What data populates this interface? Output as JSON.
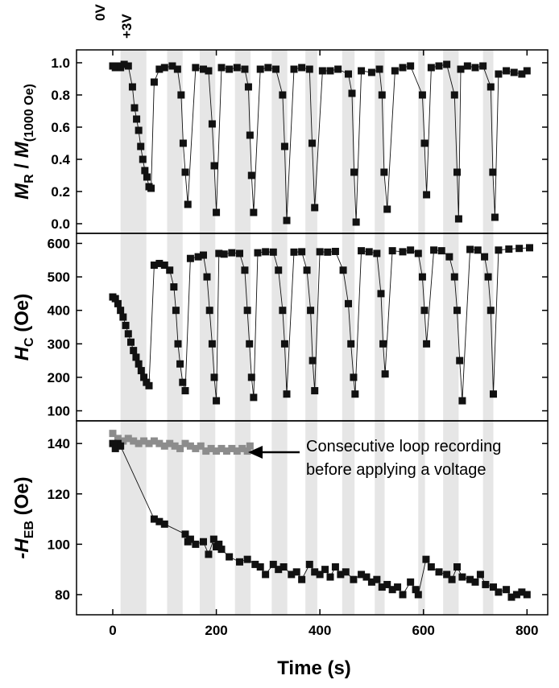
{
  "chart_data": {
    "type": "scatter",
    "title": "",
    "xlabel": "Time (s)",
    "x_ticks": [
      "0",
      "200",
      "400",
      "600",
      "800"
    ],
    "xlim": [
      -70,
      840
    ],
    "top_labels": [
      "0V",
      "+3V"
    ],
    "voltage_bands_s": [
      [
        15,
        65
      ],
      [
        105,
        135
      ],
      [
        168,
        198
      ],
      [
        236,
        266
      ],
      [
        307,
        337
      ],
      [
        372,
        395
      ],
      [
        443,
        467
      ],
      [
        506,
        525
      ],
      [
        590,
        603
      ],
      [
        638,
        668
      ],
      [
        715,
        735
      ]
    ],
    "panels": [
      {
        "ylabel": {
          "main": "M",
          "sub": "R",
          "mid": " / M",
          "sub2": "(1000 Oe)"
        },
        "ylim": [
          -0.06,
          1.08
        ],
        "ticks": [
          "0.0",
          "0.2",
          "0.4",
          "0.6",
          "0.8",
          "1.0"
        ],
        "series": [
          {
            "color": "#111111",
            "x": [
              0,
              5,
              10,
              15,
              22,
              30,
              38,
              42,
              46,
              50,
              54,
              58,
              62,
              66,
              70,
              74,
              80,
              90,
              100,
              115,
              125,
              132,
              136,
              140,
              145,
              160,
              175,
              185,
              192,
              196,
              200,
              210,
              225,
              240,
              255,
              262,
              265,
              268,
              272,
              285,
              300,
              315,
              328,
              332,
              336,
              350,
              365,
              380,
              385,
              390,
              405,
              420,
              435,
              455,
              462,
              466,
              470,
              480,
              500,
              515,
              520,
              524,
              530,
              545,
              560,
              575,
              598,
              602,
              606,
              615,
              630,
              645,
              660,
              665,
              668,
              672,
              685,
              700,
              715,
              730,
              734,
              738,
              745,
              760,
              775,
              790,
              800
            ],
            "y": [
              0.98,
              0.97,
              0.98,
              0.97,
              0.99,
              0.98,
              0.85,
              0.72,
              0.65,
              0.58,
              0.48,
              0.4,
              0.33,
              0.29,
              0.23,
              0.22,
              0.88,
              0.96,
              0.97,
              0.98,
              0.96,
              0.8,
              0.5,
              0.32,
              0.12,
              0.97,
              0.96,
              0.95,
              0.62,
              0.36,
              0.07,
              0.97,
              0.96,
              0.97,
              0.96,
              0.85,
              0.55,
              0.3,
              0.07,
              0.96,
              0.97,
              0.96,
              0.8,
              0.48,
              0.02,
              0.96,
              0.97,
              0.96,
              0.5,
              0.1,
              0.95,
              0.95,
              0.96,
              0.93,
              0.81,
              0.32,
              0.01,
              0.95,
              0.94,
              0.96,
              0.8,
              0.32,
              0.09,
              0.95,
              0.97,
              0.98,
              0.8,
              0.5,
              0.18,
              0.97,
              0.98,
              0.99,
              0.8,
              0.32,
              0.03,
              0.96,
              0.98,
              0.97,
              0.98,
              0.85,
              0.32,
              0.04,
              0.93,
              0.95,
              0.94,
              0.93,
              0.95
            ]
          }
        ]
      },
      {
        "ylabel": {
          "main": "H",
          "sub": "C",
          "mid": " (Oe)",
          "sub2": ""
        },
        "ylim": [
          70,
          630
        ],
        "ticks": [
          "100",
          "200",
          "300",
          "400",
          "500",
          "600"
        ],
        "series": [
          {
            "color": "#111111",
            "x": [
              0,
              5,
              10,
              15,
              20,
              25,
              30,
              35,
              40,
              45,
              50,
              55,
              60,
              65,
              70,
              80,
              90,
              100,
              110,
              118,
              122,
              126,
              130,
              135,
              140,
              150,
              165,
              175,
              182,
              187,
              192,
              196,
              200,
              205,
              215,
              230,
              245,
              255,
              260,
              264,
              268,
              272,
              280,
              295,
              310,
              320,
              328,
              332,
              336,
              350,
              365,
              375,
              382,
              386,
              390,
              400,
              415,
              430,
              445,
              455,
              460,
              465,
              468,
              480,
              495,
              510,
              518,
              522,
              526,
              540,
              560,
              575,
              590,
              598,
              602,
              606,
              620,
              635,
              650,
              660,
              665,
              670,
              675,
              690,
              705,
              718,
              725,
              730,
              735,
              745,
              765,
              785,
              805
            ],
            "y": [
              440,
              435,
              420,
              400,
              380,
              355,
              330,
              305,
              280,
              260,
              240,
              220,
              200,
              185,
              175,
              535,
              540,
              535,
              520,
              470,
              400,
              300,
              240,
              185,
              160,
              555,
              560,
              565,
              500,
              400,
              300,
              200,
              130,
              570,
              568,
              572,
              570,
              520,
              400,
              300,
              200,
              140,
              572,
              575,
              574,
              520,
              400,
              300,
              150,
              574,
              575,
              520,
              400,
              250,
              160,
              575,
              574,
              576,
              520,
              420,
              300,
              200,
              150,
              578,
              575,
              570,
              450,
              300,
              210,
              578,
              575,
              580,
              570,
              500,
              400,
              300,
              580,
              578,
              560,
              500,
              400,
              250,
              130,
              582,
              580,
              560,
              500,
              400,
              150,
              580,
              583,
              585,
              587
            ]
          }
        ]
      },
      {
        "ylabel": {
          "main": "-H",
          "sub": "EB",
          "mid": " (Oe)",
          "sub2": ""
        },
        "ylim": [
          72,
          149
        ],
        "ticks": [
          "80",
          "100",
          "120",
          "140"
        ],
        "series": [
          {
            "color": "#8c8c8c",
            "x": [
              0,
              10,
              20,
              30,
              40,
              50,
              60,
              70,
              80,
              90,
              100,
              110,
              120,
              130,
              140,
              150,
              160,
              170,
              180,
              190,
              200,
              210,
              220,
              230,
              240,
              250,
              260,
              265
            ],
            "y": [
              144,
              142,
              141,
              142,
              141,
              140,
              141,
              140,
              141,
              140,
              139,
              140,
              139,
              138,
              140,
              139,
              138,
              139,
              137,
              138,
              137,
              138,
              137,
              138,
              137,
              138,
              137,
              139
            ]
          },
          {
            "color": "#111111",
            "x": [
              0,
              5,
              10,
              15,
              80,
              90,
              100,
              140,
              145,
              150,
              160,
              175,
              185,
              195,
              200,
              205,
              210,
              225,
              245,
              260,
              275,
              285,
              295,
              310,
              320,
              330,
              345,
              355,
              365,
              380,
              390,
              400,
              410,
              420,
              430,
              440,
              450,
              465,
              480,
              490,
              500,
              510,
              520,
              530,
              540,
              550,
              560,
              575,
              585,
              590,
              605,
              615,
              630,
              645,
              655,
              665,
              675,
              690,
              700,
              710,
              720,
              735,
              745,
              760,
              770,
              780,
              790,
              800
            ],
            "y": [
              140,
              138,
              140,
              139,
              110,
              109,
              108,
              104,
              101,
              102,
              100,
              101,
              96,
              102,
              99,
              100,
              98,
              95,
              93,
              94,
              92,
              91,
              88,
              92,
              90,
              91,
              88,
              89,
              86,
              92,
              89,
              88,
              90,
              87,
              91,
              88,
              89,
              86,
              88,
              87,
              85,
              86,
              83,
              84,
              82,
              83,
              80,
              85,
              82,
              80,
              94,
              91,
              89,
              88,
              86,
              91,
              87,
              86,
              85,
              88,
              84,
              83,
              81,
              82,
              79,
              80,
              81,
              80
            ]
          }
        ]
      }
    ],
    "annotation": [
      "Consecutive loop recording",
      "before applying a voltage"
    ]
  }
}
